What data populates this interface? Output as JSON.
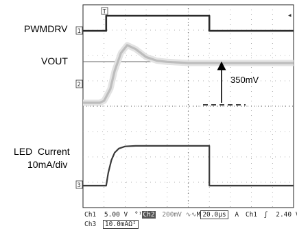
{
  "chart_data": {
    "type": "line",
    "title": "",
    "channel_labels": {
      "pwmdrv": "PWMDRV",
      "vout": "VOUT",
      "led_current_line1": "LED  Current",
      "led_current_line2": "10mA/div"
    },
    "marker_labels": {
      "ch1": "1",
      "ch2": "2",
      "ch3": "3",
      "trigger": "T"
    },
    "annotation": "350mV",
    "time_axis": {
      "divisions": 10,
      "time_per_div_us": 20.0,
      "xlim": [
        0,
        10
      ]
    },
    "series": [
      {
        "name": "PWMDRV",
        "x": [
          0,
          1.1,
          1.1,
          6.0,
          6.0,
          10
        ],
        "y": [
          0,
          0,
          1,
          1,
          0,
          0
        ]
      },
      {
        "name": "VOUT",
        "x": [
          0,
          0.8,
          1.0,
          1.3,
          1.5,
          1.8,
          2.1,
          2.5,
          3.0,
          3.5,
          4.0,
          5.0,
          6.0,
          7.0,
          8.0,
          9.0,
          10
        ],
        "y": [
          0,
          0,
          0.05,
          0.35,
          0.8,
          1.25,
          1.45,
          1.35,
          1.15,
          1.06,
          1.03,
          1.0,
          1.0,
          1.0,
          1.0,
          1.0,
          1.0
        ]
      },
      {
        "name": "LED Current",
        "x": [
          0,
          1.1,
          1.2,
          1.35,
          1.5,
          1.7,
          2.0,
          2.5,
          6.0,
          6.0,
          10
        ],
        "y": [
          0,
          0,
          1.2,
          2.4,
          3.1,
          3.5,
          3.7,
          3.75,
          3.75,
          0,
          0
        ]
      }
    ],
    "status_bar": {
      "ch1": "Ch1",
      "ch1_scale": "5.00 V",
      "ch2_icon": "°ᴵ",
      "ch2": "Ch2",
      "ch2_scale": "200mV",
      "bw_icon": "∿∿",
      "timebase_label": "M",
      "timebase": "20.0µs",
      "trigger_mode": "A",
      "trigger_ch": "Ch1",
      "trigger_slope": "ʃ",
      "trigger_level": "2.40 V",
      "ch3": "Ch3",
      "ch3_scale": "10.0mAΩᴵ"
    }
  }
}
